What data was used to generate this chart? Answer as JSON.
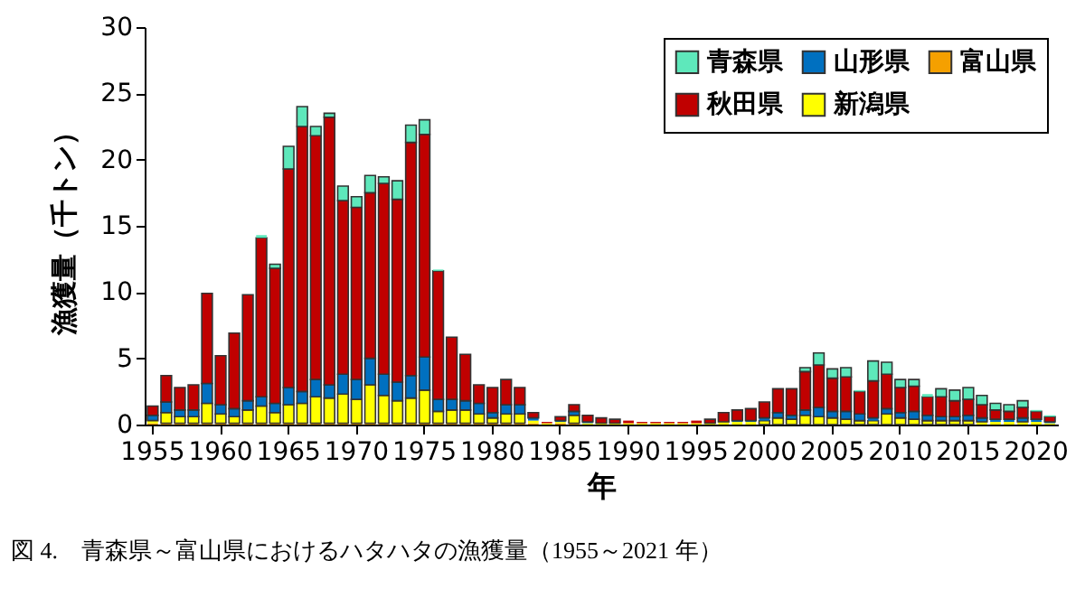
{
  "chart_data": {
    "type": "bar",
    "stacked": true,
    "xlabel": "年",
    "ylabel": "漁獲量（千トン）",
    "annotations": [
      "図 4.　青森県～富山県におけるハタハタの漁獲量（1955～2021 年）"
    ],
    "categories": [
      "1955",
      null,
      null,
      null,
      null,
      "1960",
      null,
      null,
      null,
      null,
      "1965",
      null,
      null,
      null,
      null,
      "1970",
      null,
      null,
      null,
      null,
      "1975",
      null,
      null,
      null,
      null,
      "1980",
      null,
      null,
      null,
      null,
      "1985",
      null,
      null,
      null,
      null,
      "1990",
      null,
      null,
      null,
      null,
      "1995",
      null,
      null,
      null,
      null,
      "2000",
      null,
      null,
      null,
      null,
      "2005",
      null,
      null,
      null,
      null,
      "2010",
      null,
      null,
      null,
      null,
      "2015",
      null,
      null,
      null,
      null,
      "2020",
      null
    ],
    "series": [
      {
        "name": "富山県",
        "color": "#f5a000",
        "values": [
          0.1,
          0.1,
          0.1,
          0.1,
          0.1,
          0.1,
          0.1,
          0.1,
          0.1,
          0.1,
          0.1,
          0.1,
          0.1,
          0.1,
          0.1,
          0.1,
          0.1,
          0.1,
          0.1,
          0.1,
          0.1,
          0.1,
          0.1,
          0.1,
          0.1,
          0.1,
          0.1,
          0.1,
          0.1,
          null,
          0.1,
          0.1,
          null,
          null,
          null,
          null,
          null,
          null,
          null,
          null,
          null,
          null,
          null,
          null,
          null,
          null,
          null,
          null,
          null,
          null,
          null,
          null,
          null,
          null,
          null,
          null,
          null,
          null,
          null,
          null,
          null,
          null,
          null,
          null,
          null,
          null,
          null
        ]
      },
      {
        "name": "新潟県",
        "color": "#ffff00",
        "values": [
          0.2,
          0.8,
          0.5,
          0.5,
          1.5,
          0.7,
          0.5,
          1.0,
          1.3,
          0.8,
          1.4,
          1.5,
          2.0,
          1.9,
          2.2,
          1.8,
          2.9,
          2.1,
          1.7,
          1.9,
          2.5,
          0.9,
          1.0,
          1.0,
          0.7,
          0.4,
          0.7,
          0.7,
          0.2,
          0.1,
          0.1,
          0.6,
          0.1,
          0.1,
          0.1,
          0.1,
          0.1,
          0.1,
          0.1,
          0.1,
          0.1,
          0.1,
          0.2,
          0.2,
          0.2,
          0.3,
          0.5,
          0.4,
          0.7,
          0.6,
          0.5,
          0.4,
          0.3,
          0.3,
          0.8,
          0.5,
          0.4,
          0.3,
          0.3,
          0.3,
          0.3,
          0.2,
          0.2,
          0.2,
          0.2,
          0.2,
          0.1
        ]
      },
      {
        "name": "山形県",
        "color": "#0070c0",
        "values": [
          0.4,
          0.8,
          0.5,
          0.5,
          1.5,
          0.7,
          0.6,
          0.7,
          0.7,
          0.7,
          1.3,
          0.9,
          1.3,
          1.0,
          1.5,
          1.5,
          2.0,
          1.6,
          1.4,
          1.7,
          2.5,
          0.9,
          0.8,
          0.7,
          0.8,
          0.4,
          0.7,
          0.7,
          0.2,
          null,
          0.1,
          0.3,
          0.1,
          null,
          null,
          null,
          null,
          null,
          null,
          null,
          null,
          null,
          null,
          0.1,
          0.1,
          0.2,
          0.4,
          0.3,
          0.4,
          0.7,
          0.5,
          0.6,
          0.5,
          0.2,
          0.4,
          0.4,
          0.6,
          0.4,
          0.3,
          0.3,
          0.4,
          0.3,
          0.2,
          0.2,
          0.3,
          0.2,
          0.1
        ]
      },
      {
        "name": "秋田県",
        "color": "#c00000",
        "values": [
          0.7,
          2.0,
          1.7,
          1.9,
          6.8,
          3.7,
          5.7,
          8.0,
          12.0,
          10.2,
          16.5,
          20.0,
          18.4,
          20.2,
          13.1,
          13.0,
          12.5,
          14.4,
          13.8,
          17.6,
          16.8,
          9.7,
          4.7,
          3.5,
          1.4,
          1.9,
          1.9,
          1.3,
          0.4,
          0.1,
          0.3,
          0.5,
          0.5,
          0.4,
          0.3,
          0.2,
          0.1,
          0.1,
          0.1,
          0.1,
          0.2,
          0.3,
          0.7,
          0.8,
          0.9,
          1.2,
          1.8,
          2.0,
          2.9,
          3.2,
          2.5,
          2.6,
          1.7,
          2.8,
          2.6,
          1.9,
          1.9,
          1.4,
          1.5,
          1.2,
          1.2,
          1.0,
          0.7,
          0.6,
          0.8,
          0.6,
          0.4
        ]
      },
      {
        "name": "青森県",
        "color": "#5ee8bb",
        "values": [
          null,
          null,
          null,
          null,
          null,
          null,
          null,
          null,
          0.2,
          0.3,
          1.7,
          1.5,
          0.7,
          0.3,
          1.1,
          0.8,
          1.3,
          0.5,
          1.4,
          1.3,
          1.1,
          0.1,
          null,
          null,
          null,
          null,
          null,
          null,
          null,
          null,
          null,
          null,
          null,
          null,
          null,
          null,
          null,
          null,
          null,
          null,
          null,
          null,
          null,
          null,
          null,
          null,
          null,
          null,
          0.3,
          0.9,
          0.7,
          0.7,
          0.1,
          1.5,
          0.9,
          0.6,
          0.5,
          0.2,
          0.6,
          0.8,
          0.9,
          0.7,
          0.5,
          0.5,
          0.5,
          0.1,
          0.1
        ]
      }
    ],
    "ylim": [
      0,
      30
    ],
    "yticks": [
      0,
      5,
      10,
      15,
      20,
      25,
      30
    ],
    "grid": false,
    "legend": "top right"
  }
}
